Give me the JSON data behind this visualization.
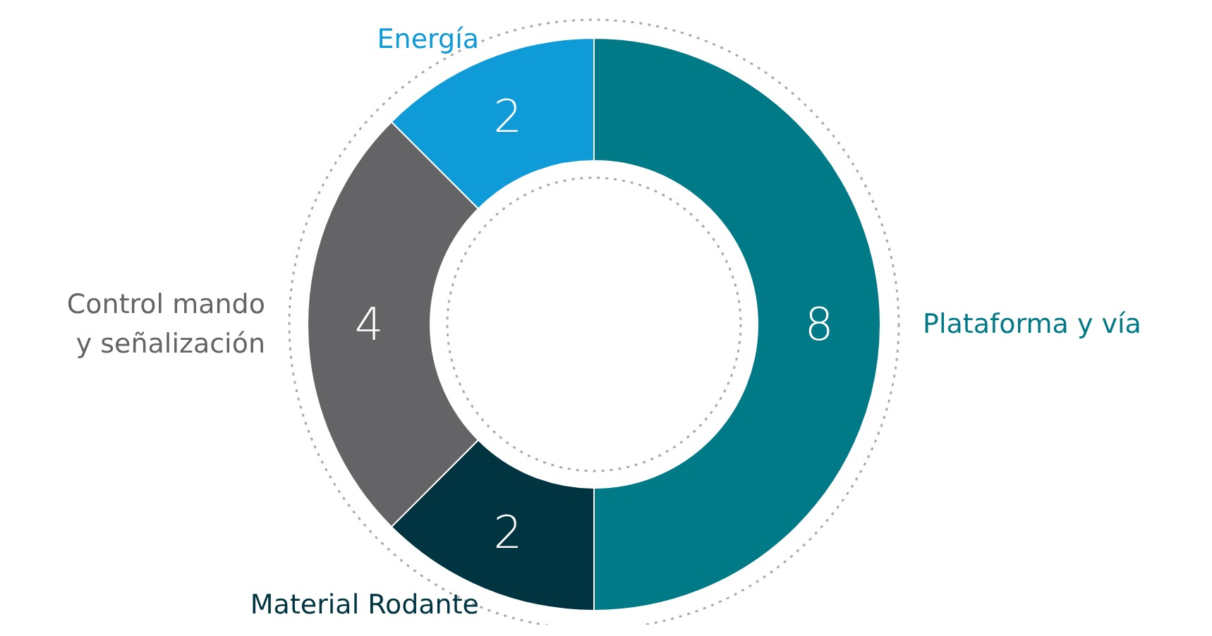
{
  "chart_data": {
    "type": "donut",
    "categories": [
      "Plataforma y vía",
      "Material Rodante",
      "Control mando y señalización",
      "Energía"
    ],
    "values": [
      8,
      2,
      4,
      2
    ],
    "colors": [
      "#007a87",
      "#003441",
      "#646466",
      "#0f9bd7"
    ],
    "data_labels": true
  }
}
